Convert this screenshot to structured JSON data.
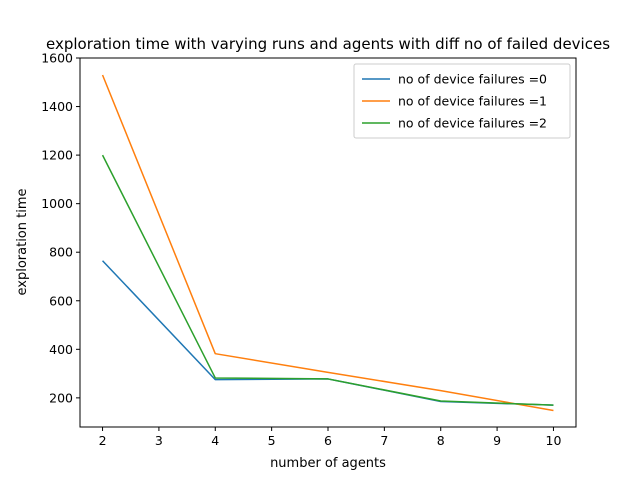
{
  "chart_data": {
    "type": "line",
    "title": "exploration time with varying runs and agents with diff no of failed devices",
    "xlabel": "number of agents",
    "ylabel": "exploration time",
    "x": [
      2,
      4,
      6,
      8,
      10
    ],
    "xlim": [
      1.6,
      10.4
    ],
    "ylim": [
      80,
      1600
    ],
    "xticks": [
      2,
      3,
      4,
      5,
      6,
      7,
      8,
      9,
      10
    ],
    "yticks": [
      200,
      400,
      600,
      800,
      1000,
      1200,
      1400,
      1600
    ],
    "grid": false,
    "legend_position": "top-right",
    "series": [
      {
        "name": "no of device failures =0",
        "color": "#1f77b4",
        "values": [
          765,
          275,
          278,
          185,
          170
        ]
      },
      {
        "name": "no of device failures =1",
        "color": "#ff7f0e",
        "values": [
          1530,
          382,
          305,
          230,
          148
        ]
      },
      {
        "name": "no of device failures =2",
        "color": "#2ca02c",
        "values": [
          1200,
          282,
          278,
          187,
          170
        ]
      }
    ]
  }
}
